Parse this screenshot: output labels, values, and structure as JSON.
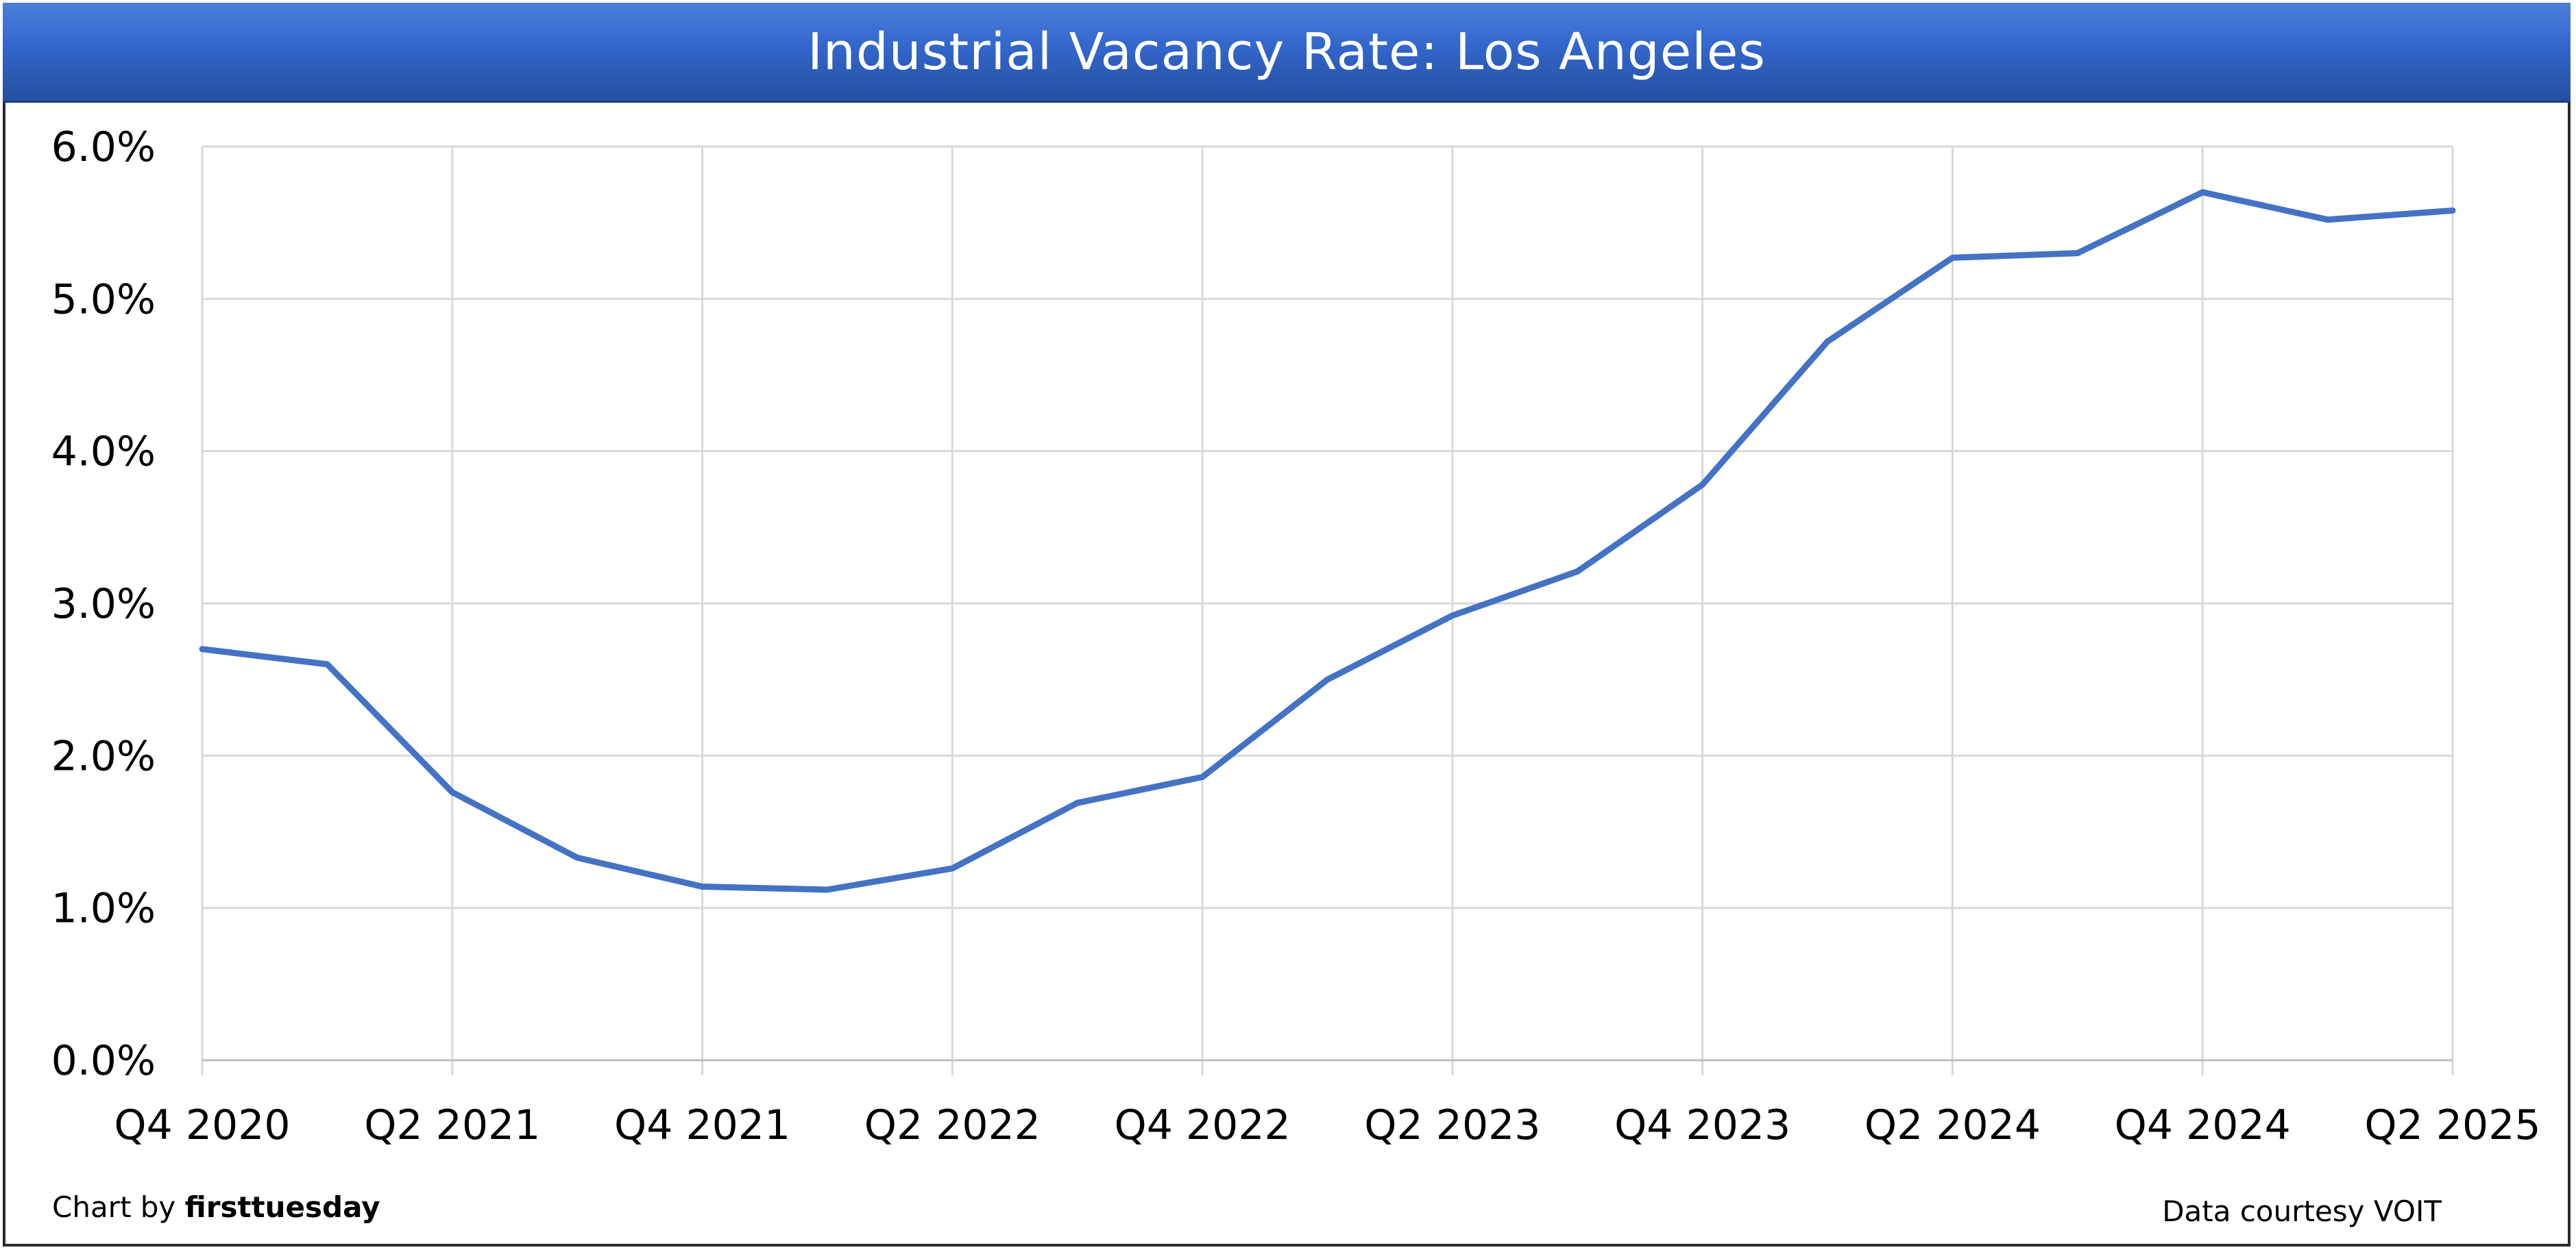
{
  "chart_data": {
    "type": "line",
    "title": "Industrial Vacancy Rate: Los Angeles",
    "xlabel": "",
    "ylabel": "",
    "categories": [
      "Q4 2020",
      "Q1 2021",
      "Q2 2021",
      "Q3 2021",
      "Q4 2021",
      "Q1 2022",
      "Q2 2022",
      "Q3 2022",
      "Q4 2022",
      "Q1 2023",
      "Q2 2023",
      "Q3 2023",
      "Q4 2023",
      "Q1 2024",
      "Q2 2024",
      "Q3 2024",
      "Q4 2024",
      "Q1 2025",
      "Q2 2025"
    ],
    "x_tick_labels": [
      "Q4 2020",
      "Q2 2021",
      "Q4 2021",
      "Q2 2022",
      "Q4 2022",
      "Q2 2023",
      "Q4 2023",
      "Q2 2024",
      "Q4 2024",
      "Q2 2025"
    ],
    "y_tick_labels": [
      "0.0%",
      "1.0%",
      "2.0%",
      "3.0%",
      "4.0%",
      "5.0%",
      "6.0%"
    ],
    "series": [
      {
        "values": [
          2.7,
          2.6,
          1.76,
          1.33,
          1.14,
          1.12,
          1.26,
          1.69,
          1.86,
          2.5,
          2.92,
          3.21,
          3.78,
          4.72,
          5.27,
          5.3,
          5.7,
          5.52,
          5.58
        ],
        "color": "#4472c4"
      }
    ],
    "ylim": [
      0,
      6
    ],
    "y_unit": "%",
    "grid": true,
    "legend": "none"
  },
  "footer": {
    "credit_prefix": "Chart by ",
    "credit_brand": "firsttuesday",
    "source": "Data courtesy VOIT"
  }
}
